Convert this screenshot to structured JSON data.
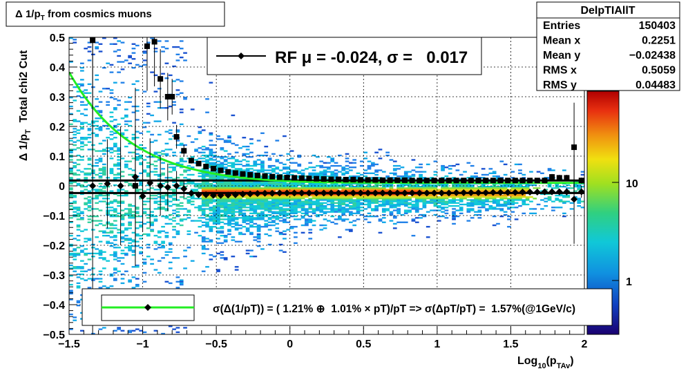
{
  "title": {
    "main": "Δ 1/p",
    "sub": "T",
    "rest": " from cosmics muons"
  },
  "stats": {
    "name": "DelpTIAllT",
    "rows": [
      {
        "label": "Entries",
        "value": "150403"
      },
      {
        "label": "Mean x",
        "value": "0.2251"
      },
      {
        "label": "Mean y",
        "value": "−0.02438"
      },
      {
        "label": "RMS x",
        "value": "0.5059"
      },
      {
        "label": "RMS y",
        "value": "0.04483"
      }
    ]
  },
  "fit_box": {
    "text": "RF μ = -0.024, σ =   0.017"
  },
  "legend_box": {
    "text": "σ(Δ(1/pT)) = ( 1.21% ⊕  1.01% × pT)/pT => σ(ΔpT/pT) =  1.57%(@1GeV/c)"
  },
  "axes": {
    "ylabel_main": "Δ 1/p",
    "ylabel_sub": "T",
    "ylabel_extra": "Total chi2 Cut",
    "xlabel_main": "Log",
    "xlabel_sub1": "10",
    "xlabel_mid": "(p",
    "xlabel_sub2": "TAv",
    "xlabel_end": ")"
  },
  "colorbar": {
    "tick_labels": [
      "10",
      "1"
    ]
  },
  "chart_data": {
    "type": "heatmap",
    "xlim": [
      -1.5,
      2
    ],
    "ylim": [
      -0.5,
      0.5
    ],
    "x_ticks": [
      {
        "v": -1.5,
        "label": "−1.5"
      },
      {
        "v": -1,
        "label": "−1"
      },
      {
        "v": -0.5,
        "label": "−0.5"
      },
      {
        "v": 0,
        "label": "0"
      },
      {
        "v": 0.5,
        "label": "0.5"
      },
      {
        "v": 1,
        "label": "1"
      },
      {
        "v": 1.5,
        "label": "1.5"
      },
      {
        "v": 2,
        "label": "2"
      }
    ],
    "y_ticks": [
      {
        "v": 0.5,
        "label": "0.5"
      },
      {
        "v": 0.4,
        "label": "0.4"
      },
      {
        "v": 0.3,
        "label": "0.3"
      },
      {
        "v": 0.2,
        "label": "0.2"
      },
      {
        "v": 0.1,
        "label": "0.1"
      },
      {
        "v": 0,
        "label": "0"
      },
      {
        "v": -0.1,
        "label": "−0.1"
      },
      {
        "v": -0.2,
        "label": "−0.2"
      },
      {
        "v": -0.3,
        "label": "−0.3"
      },
      {
        "v": -0.4,
        "label": "−0.4"
      },
      {
        "v": -0.5,
        "label": "−0.5"
      }
    ],
    "grid": true,
    "colorbar_scale": "log",
    "mean_line_y": -0.024,
    "upper_line_y": 0.018,
    "mean_points": {
      "x": [
        -1.34,
        -1.24,
        -1.15,
        -1.05,
        -1.0,
        -0.95,
        -0.88,
        -0.83,
        -0.77,
        -0.72,
        -0.67,
        -0.62,
        -0.57,
        -0.52,
        -0.47,
        -0.42,
        -0.37,
        -0.32,
        -0.27,
        -0.22,
        -0.17,
        -0.12,
        -0.07,
        -0.02,
        0.03,
        0.08,
        0.13,
        0.18,
        0.23,
        0.28,
        0.33,
        0.38,
        0.43,
        0.48,
        0.53,
        0.58,
        0.63,
        0.68,
        0.73,
        0.78,
        0.83,
        0.88,
        0.93,
        0.98,
        1.03,
        1.08,
        1.13,
        1.18,
        1.23,
        1.28,
        1.33,
        1.38,
        1.43,
        1.48,
        1.53,
        1.58,
        1.63,
        1.68,
        1.73,
        1.78,
        1.83,
        1.88,
        1.93,
        1.98
      ],
      "y": [
        0.0,
        0.007,
        0.0,
        0.03,
        -0.035,
        0.01,
        0.0,
        -0.005,
        0.0,
        -0.01,
        -0.025,
        -0.03,
        -0.03,
        -0.032,
        -0.032,
        -0.031,
        -0.03,
        -0.028,
        -0.027,
        -0.026,
        -0.025,
        -0.025,
        -0.024,
        -0.024,
        -0.024,
        -0.024,
        -0.024,
        -0.024,
        -0.024,
        -0.024,
        -0.024,
        -0.024,
        -0.024,
        -0.024,
        -0.024,
        -0.024,
        -0.024,
        -0.024,
        -0.024,
        -0.024,
        -0.024,
        -0.024,
        -0.024,
        -0.024,
        -0.024,
        -0.024,
        -0.023,
        -0.023,
        -0.023,
        -0.023,
        -0.023,
        -0.022,
        -0.022,
        -0.022,
        -0.022,
        -0.021,
        -0.021,
        -0.021,
        -0.02,
        -0.02,
        -0.02,
        -0.02,
        -0.045,
        -0.02
      ],
      "err": [
        0.5,
        0.15,
        0.2,
        0.3,
        0.12,
        0.15,
        0.1,
        0.08,
        0.05,
        0.03,
        0.01,
        0.008,
        0.006,
        0.005,
        0.004,
        0.003,
        0.003,
        0.002,
        0.002,
        0.002,
        0.002,
        0.002,
        0.002,
        0.002,
        0.002,
        0.002,
        0.002,
        0.002,
        0.002,
        0.002,
        0.002,
        0.002,
        0.002,
        0.002,
        0.002,
        0.002,
        0.002,
        0.002,
        0.002,
        0.002,
        0.002,
        0.002,
        0.002,
        0.002,
        0.002,
        0.002,
        0.002,
        0.002,
        0.002,
        0.002,
        0.002,
        0.002,
        0.002,
        0.002,
        0.003,
        0.003,
        0.003,
        0.004,
        0.005,
        0.006,
        0.008,
        0.012,
        0.15,
        0.02
      ]
    },
    "sigma_points": {
      "x": [
        -1.34,
        -1.05,
        -0.97,
        -0.92,
        -0.88,
        -0.83,
        -0.8,
        -0.77,
        -0.72,
        -0.67,
        -0.62,
        -0.57,
        -0.52,
        -0.47,
        -0.42,
        -0.37,
        -0.32,
        -0.27,
        -0.22,
        -0.17,
        -0.12,
        -0.07,
        -0.02,
        0.03,
        0.08,
        0.13,
        0.18,
        0.23,
        0.28,
        0.33,
        0.38,
        0.43,
        0.48,
        0.53,
        0.58,
        0.63,
        0.68,
        0.73,
        0.78,
        0.83,
        0.88,
        0.93,
        0.98,
        1.03,
        1.08,
        1.13,
        1.18,
        1.23,
        1.28,
        1.33,
        1.38,
        1.43,
        1.48,
        1.53,
        1.58,
        1.63,
        1.68,
        1.73,
        1.78,
        1.83,
        1.88,
        1.93,
        1.98
      ],
      "y": [
        0.49,
        0.0,
        0.47,
        0.485,
        0.36,
        0.3,
        0.3,
        0.165,
        0.118,
        0.085,
        0.075,
        0.065,
        0.058,
        0.052,
        0.047,
        0.043,
        0.04,
        0.037,
        0.035,
        0.033,
        0.031,
        0.029,
        0.028,
        0.027,
        0.026,
        0.025,
        0.024,
        0.023,
        0.022,
        0.022,
        0.021,
        0.021,
        0.02,
        0.02,
        0.02,
        0.019,
        0.019,
        0.019,
        0.019,
        0.018,
        0.018,
        0.018,
        0.018,
        0.018,
        0.018,
        0.018,
        0.018,
        0.018,
        0.018,
        0.018,
        0.018,
        0.018,
        0.018,
        0.018,
        0.018,
        0.018,
        0.018,
        0.018,
        0.03,
        0.027,
        0.027,
        0.13,
        0.018
      ],
      "err": [
        0.5,
        0.2,
        0.15,
        0.15,
        0.1,
        0.08,
        0.06,
        0.04,
        0.02,
        0.01,
        0.008,
        0.006,
        0.005,
        0.004,
        0.003,
        0.003,
        0.002,
        0.002,
        0.002,
        0.002,
        0.002,
        0.002,
        0.002,
        0.002,
        0.002,
        0.002,
        0.002,
        0.002,
        0.002,
        0.002,
        0.002,
        0.002,
        0.002,
        0.002,
        0.002,
        0.002,
        0.002,
        0.002,
        0.002,
        0.002,
        0.002,
        0.002,
        0.002,
        0.002,
        0.002,
        0.002,
        0.002,
        0.002,
        0.002,
        0.002,
        0.002,
        0.002,
        0.002,
        0.002,
        0.002,
        0.002,
        0.002,
        0.002,
        0.01,
        0.01,
        0.01,
        0.15,
        0.01
      ]
    },
    "fit_curve": {
      "label": "σ(Δ(1/pT))",
      "a_percent": 1.21,
      "b_percent": 1.01
    }
  }
}
